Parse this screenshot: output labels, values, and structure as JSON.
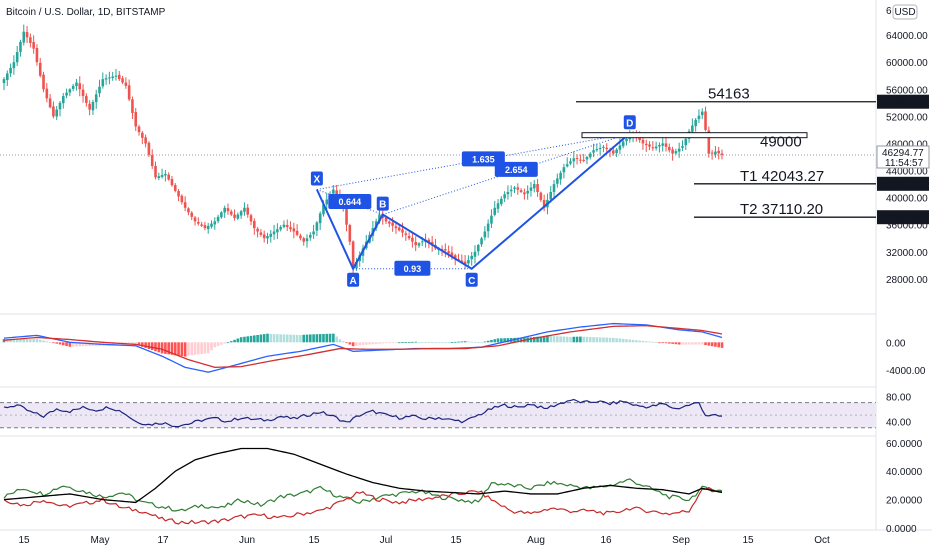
{
  "header": {
    "symbol": "Bitcoin / U.S. Dollar, 1D, BITSTAMP",
    "currency": "USD"
  },
  "chart_data": {
    "type": "candlestick",
    "price_axis": {
      "ylim": [
        24000,
        68000
      ],
      "ticks": [
        "64000.00",
        "60000.00",
        "56000.00",
        "52000.00",
        "48000.00",
        "44000.00",
        "40000.00",
        "36000.00",
        "32000.00",
        "28000.00"
      ],
      "tick_values": [
        64000,
        60000,
        56000,
        52000,
        48000,
        44000,
        40000,
        36000,
        32000,
        28000
      ],
      "top_partial": "6"
    },
    "time_axis": {
      "labels": [
        "15",
        "May",
        "17",
        "Jun",
        "15",
        "Jul",
        "15",
        "Aug",
        "16",
        "Sep",
        "15",
        "Oct"
      ]
    },
    "price_anchors": [
      [
        0,
        57500
      ],
      [
        3,
        60000
      ],
      [
        6,
        64500
      ],
      [
        9,
        62000
      ],
      [
        12,
        56000
      ],
      [
        15,
        52000
      ],
      [
        18,
        55000
      ],
      [
        22,
        57000
      ],
      [
        26,
        53000
      ],
      [
        30,
        57500
      ],
      [
        34,
        58000
      ],
      [
        37,
        56500
      ],
      [
        40,
        50500
      ],
      [
        43,
        48000
      ],
      [
        46,
        43000
      ],
      [
        49,
        43500
      ],
      [
        52,
        41000
      ],
      [
        55,
        38500
      ],
      [
        58,
        36500
      ],
      [
        61,
        35500
      ],
      [
        64,
        36500
      ],
      [
        67,
        38500
      ],
      [
        70,
        37000
      ],
      [
        73,
        38500
      ],
      [
        76,
        35500
      ],
      [
        79,
        34000
      ],
      [
        82,
        35000
      ],
      [
        85,
        36000
      ],
      [
        88,
        35000
      ],
      [
        91,
        33500
      ],
      [
        94,
        35000
      ],
      [
        97,
        39000
      ],
      [
        100,
        41200
      ],
      [
        103,
        38500
      ],
      [
        105,
        33500
      ],
      [
        106,
        29500
      ],
      [
        108,
        31500
      ],
      [
        111,
        34500
      ],
      [
        114,
        37500
      ],
      [
        116,
        36500
      ],
      [
        119,
        35500
      ],
      [
        122,
        34500
      ],
      [
        125,
        33000
      ],
      [
        128,
        33800
      ],
      [
        131,
        32500
      ],
      [
        134,
        32200
      ],
      [
        137,
        31000
      ],
      [
        140,
        30200
      ],
      [
        143,
        32000
      ],
      [
        146,
        35000
      ],
      [
        149,
        38500
      ],
      [
        152,
        40500
      ],
      [
        155,
        41500
      ],
      [
        158,
        40500
      ],
      [
        161,
        42000
      ],
      [
        164,
        38500
      ],
      [
        167,
        42000
      ],
      [
        170,
        44500
      ],
      [
        173,
        45800
      ],
      [
        176,
        45500
      ],
      [
        179,
        47000
      ],
      [
        182,
        47500
      ],
      [
        185,
        46500
      ],
      [
        188,
        48300
      ],
      [
        191,
        49500
      ],
      [
        194,
        48000
      ],
      [
        197,
        47300
      ],
      [
        200,
        48000
      ],
      [
        203,
        46500
      ],
      [
        206,
        47600
      ],
      [
        208,
        49800
      ],
      [
        210,
        51500
      ],
      [
        212,
        52700
      ],
      [
        213,
        50000
      ],
      [
        214,
        46500
      ],
      [
        215,
        46500
      ],
      [
        216,
        46800
      ],
      [
        218,
        46300
      ]
    ],
    "price_lines": [
      {
        "label": "54163",
        "tag": "54162.79",
        "value": 54163
      },
      {
        "label": "49000",
        "value": 49000
      },
      {
        "label": "T1   42043.27",
        "tag": "42043.27",
        "value": 42043
      },
      {
        "label": "T2   37110.20",
        "tag": "37110.20",
        "value": 37110
      }
    ],
    "current_price": {
      "price": "46294.77",
      "countdown": "11:54:57",
      "value": 46295
    },
    "harmonic_pattern": {
      "points": [
        {
          "name": "X",
          "bar": 95,
          "value": 41200
        },
        {
          "name": "A",
          "bar": 106,
          "value": 29500
        },
        {
          "name": "B",
          "bar": 115,
          "value": 37500
        },
        {
          "name": "C",
          "bar": 142,
          "value": 29500
        },
        {
          "name": "D",
          "bar": 190,
          "value": 49500
        }
      ],
      "ratios": [
        "0.644",
        "0.93",
        "1.635",
        "2.654"
      ]
    },
    "macd": {
      "ylim": [
        -6000,
        3500
      ],
      "ticks": [
        "0.00",
        "-4000.00"
      ],
      "tick_values": [
        0,
        -4000
      ],
      "macd_anchors": [
        [
          0,
          600
        ],
        [
          10,
          1000
        ],
        [
          20,
          0
        ],
        [
          30,
          -300
        ],
        [
          40,
          -500
        ],
        [
          48,
          -2000
        ],
        [
          55,
          -3600
        ],
        [
          62,
          -4300
        ],
        [
          70,
          -3300
        ],
        [
          80,
          -2000
        ],
        [
          90,
          -1300
        ],
        [
          100,
          -300
        ],
        [
          106,
          -1300
        ],
        [
          115,
          -1100
        ],
        [
          125,
          -900
        ],
        [
          135,
          -900
        ],
        [
          145,
          -700
        ],
        [
          155,
          400
        ],
        [
          165,
          1500
        ],
        [
          175,
          2200
        ],
        [
          185,
          2700
        ],
        [
          195,
          2500
        ],
        [
          205,
          1800
        ],
        [
          212,
          1500
        ],
        [
          218,
          700
        ]
      ],
      "signal_anchors": [
        [
          0,
          300
        ],
        [
          10,
          700
        ],
        [
          20,
          400
        ],
        [
          30,
          0
        ],
        [
          40,
          -300
        ],
        [
          48,
          -1000
        ],
        [
          56,
          -2500
        ],
        [
          64,
          -3600
        ],
        [
          72,
          -3500
        ],
        [
          82,
          -2600
        ],
        [
          92,
          -1800
        ],
        [
          102,
          -900
        ],
        [
          110,
          -1000
        ],
        [
          120,
          -1000
        ],
        [
          130,
          -900
        ],
        [
          140,
          -900
        ],
        [
          150,
          -500
        ],
        [
          160,
          500
        ],
        [
          172,
          1500
        ],
        [
          185,
          2300
        ],
        [
          195,
          2400
        ],
        [
          205,
          2000
        ],
        [
          212,
          1700
        ],
        [
          218,
          1200
        ]
      ]
    },
    "rsi": {
      "ylim": [
        20,
        90
      ],
      "ticks": [
        "80.00",
        "40.00"
      ],
      "tick_values": [
        80,
        40
      ],
      "band": [
        70,
        30
      ],
      "anchors": [
        [
          0,
          62
        ],
        [
          4,
          66
        ],
        [
          8,
          55
        ],
        [
          12,
          48
        ],
        [
          16,
          60
        ],
        [
          20,
          56
        ],
        [
          24,
          62
        ],
        [
          28,
          58
        ],
        [
          32,
          63
        ],
        [
          36,
          55
        ],
        [
          40,
          40
        ],
        [
          44,
          35
        ],
        [
          48,
          38
        ],
        [
          52,
          33
        ],
        [
          56,
          36
        ],
        [
          60,
          42
        ],
        [
          64,
          45
        ],
        [
          68,
          40
        ],
        [
          72,
          46
        ],
        [
          76,
          43
        ],
        [
          80,
          42
        ],
        [
          84,
          48
        ],
        [
          88,
          44
        ],
        [
          92,
          50
        ],
        [
          96,
          55
        ],
        [
          100,
          48
        ],
        [
          104,
          38
        ],
        [
          108,
          50
        ],
        [
          112,
          56
        ],
        [
          116,
          50
        ],
        [
          120,
          46
        ],
        [
          124,
          48
        ],
        [
          128,
          44
        ],
        [
          132,
          46
        ],
        [
          136,
          42
        ],
        [
          140,
          40
        ],
        [
          144,
          50
        ],
        [
          148,
          60
        ],
        [
          152,
          66
        ],
        [
          156,
          62
        ],
        [
          160,
          68
        ],
        [
          164,
          60
        ],
        [
          168,
          67
        ],
        [
          172,
          74
        ],
        [
          176,
          70
        ],
        [
          180,
          72
        ],
        [
          184,
          68
        ],
        [
          188,
          72
        ],
        [
          192,
          65
        ],
        [
          196,
          63
        ],
        [
          200,
          68
        ],
        [
          204,
          60
        ],
        [
          208,
          66
        ],
        [
          211,
          70
        ],
        [
          213,
          50
        ],
        [
          218,
          48
        ]
      ]
    },
    "adx": {
      "ylim": [
        0,
        62
      ],
      "ticks": [
        "60.0000",
        "40.0000",
        "20.0000",
        "0.0000"
      ],
      "tick_values": [
        60,
        40,
        20,
        0
      ],
      "adx_anchors": [
        [
          0,
          20
        ],
        [
          10,
          22
        ],
        [
          20,
          24
        ],
        [
          30,
          20
        ],
        [
          40,
          18
        ],
        [
          46,
          28
        ],
        [
          52,
          40
        ],
        [
          58,
          48
        ],
        [
          64,
          52
        ],
        [
          72,
          56
        ],
        [
          80,
          56
        ],
        [
          88,
          52
        ],
        [
          96,
          45
        ],
        [
          104,
          38
        ],
        [
          112,
          32
        ],
        [
          120,
          28
        ],
        [
          128,
          26
        ],
        [
          136,
          25
        ],
        [
          144,
          24
        ],
        [
          152,
          26
        ],
        [
          160,
          24
        ],
        [
          168,
          24
        ],
        [
          176,
          28
        ],
        [
          184,
          30
        ],
        [
          192,
          28
        ],
        [
          200,
          27
        ],
        [
          208,
          24
        ],
        [
          212,
          28
        ],
        [
          218,
          25
        ]
      ],
      "plus_anchors": [
        [
          0,
          22
        ],
        [
          6,
          28
        ],
        [
          12,
          24
        ],
        [
          18,
          30
        ],
        [
          24,
          26
        ],
        [
          30,
          22
        ],
        [
          36,
          25
        ],
        [
          42,
          18
        ],
        [
          48,
          15
        ],
        [
          54,
          12
        ],
        [
          60,
          16
        ],
        [
          66,
          14
        ],
        [
          72,
          20
        ],
        [
          78,
          16
        ],
        [
          84,
          22
        ],
        [
          90,
          24
        ],
        [
          96,
          28
        ],
        [
          102,
          22
        ],
        [
          108,
          18
        ],
        [
          114,
          22
        ],
        [
          120,
          24
        ],
        [
          126,
          26
        ],
        [
          132,
          22
        ],
        [
          138,
          20
        ],
        [
          144,
          18
        ],
        [
          148,
          32
        ],
        [
          154,
          30
        ],
        [
          160,
          28
        ],
        [
          166,
          32
        ],
        [
          172,
          30
        ],
        [
          178,
          28
        ],
        [
          184,
          30
        ],
        [
          190,
          34
        ],
        [
          196,
          28
        ],
        [
          202,
          22
        ],
        [
          208,
          20
        ],
        [
          212,
          28
        ],
        [
          218,
          26
        ]
      ],
      "minus_anchors": [
        [
          0,
          20
        ],
        [
          6,
          16
        ],
        [
          12,
          20
        ],
        [
          18,
          15
        ],
        [
          24,
          17
        ],
        [
          30,
          20
        ],
        [
          36,
          14
        ],
        [
          42,
          12
        ],
        [
          48,
          6
        ],
        [
          54,
          4
        ],
        [
          60,
          4
        ],
        [
          66,
          5
        ],
        [
          72,
          8
        ],
        [
          78,
          9
        ],
        [
          84,
          7
        ],
        [
          90,
          10
        ],
        [
          96,
          12
        ],
        [
          102,
          18
        ],
        [
          108,
          25
        ],
        [
          114,
          20
        ],
        [
          120,
          18
        ],
        [
          126,
          20
        ],
        [
          132,
          22
        ],
        [
          138,
          24
        ],
        [
          144,
          26
        ],
        [
          148,
          20
        ],
        [
          154,
          12
        ],
        [
          160,
          10
        ],
        [
          166,
          14
        ],
        [
          172,
          12
        ],
        [
          178,
          12
        ],
        [
          184,
          10
        ],
        [
          190,
          14
        ],
        [
          196,
          12
        ],
        [
          202,
          10
        ],
        [
          208,
          12
        ],
        [
          212,
          28
        ],
        [
          218,
          26
        ]
      ]
    }
  },
  "colors": {
    "up": "#26a69a",
    "down": "#ef5350",
    "pattern": "#1e53e5",
    "macd": "#2962ff",
    "signal": "#d32f2f",
    "rsi": "#1a237e",
    "adx": "#000000",
    "plus_di": "#2e7d32",
    "minus_di": "#c62828",
    "rsi_band": "#ede7f6",
    "axis_text": "#131722"
  }
}
